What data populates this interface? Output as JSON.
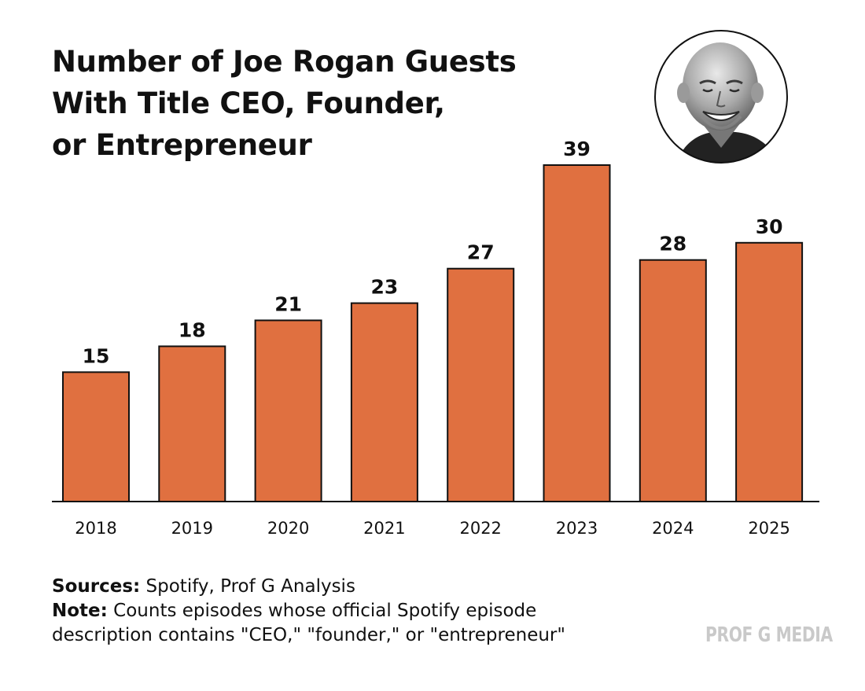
{
  "title_lines": [
    "Number of Joe Rogan Guests",
    "With Title CEO, Founder,",
    "or Entrepreneur"
  ],
  "chart_data": {
    "type": "bar",
    "title": "Number of Joe Rogan Guests With Title CEO, Founder, or Entrepreneur",
    "categories": [
      "2018",
      "2019",
      "2020",
      "2021",
      "2022",
      "2023",
      "2024",
      "2025"
    ],
    "values": [
      15,
      18,
      21,
      23,
      27,
      39,
      28,
      30
    ],
    "xlabel": "",
    "ylabel": "",
    "ylim": [
      0,
      39
    ],
    "grid": false,
    "legend": "none",
    "data_labels": true,
    "bar_color": "#E07040"
  },
  "footer": {
    "sources_label": "Sources:",
    "sources_text": " Spotify, Prof G Analysis",
    "note_label": "Note:",
    "note_text_line1": " Counts episodes whose official Spotify episode",
    "note_text_line2": "description contains \"CEO,\" \"founder,\" or \"entrepreneur\""
  },
  "brand": "PROF G MEDIA",
  "portrait_icon": "host-portrait-photo",
  "colors": {
    "bar": "#E07040",
    "text": "#111111",
    "brand": "#c9c9c9"
  }
}
